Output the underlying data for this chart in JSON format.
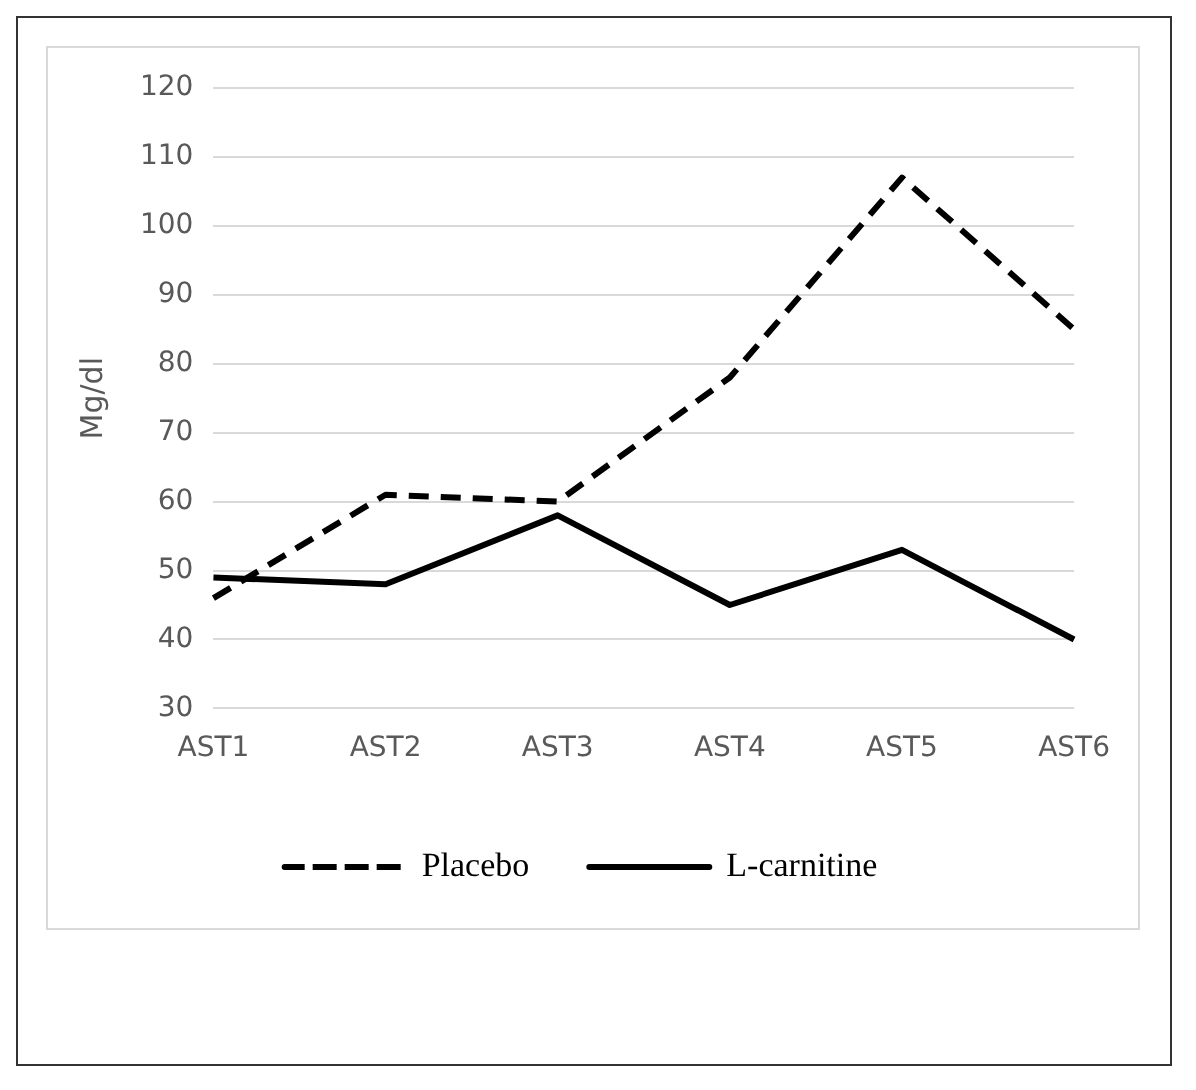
{
  "chart_data": {
    "type": "line",
    "ylabel": "Mg/dl",
    "categories": [
      "AST1",
      "AST2",
      "AST3",
      "AST4",
      "AST5",
      "AST6"
    ],
    "series": [
      {
        "name": "Placebo",
        "color": "#000000",
        "values": [
          46,
          61,
          60,
          78,
          107,
          85
        ],
        "line_style": "dashed"
      },
      {
        "name": "L-carnitine",
        "color": "#000000",
        "values": [
          49,
          48,
          58,
          45,
          53,
          40
        ],
        "line_style": "solid"
      }
    ],
    "ylim": [
      30,
      120
    ],
    "yticks": [
      30,
      40,
      50,
      60,
      70,
      80,
      90,
      100,
      110,
      120
    ],
    "grid": "y",
    "legend": "bottom",
    "marker": "none"
  }
}
